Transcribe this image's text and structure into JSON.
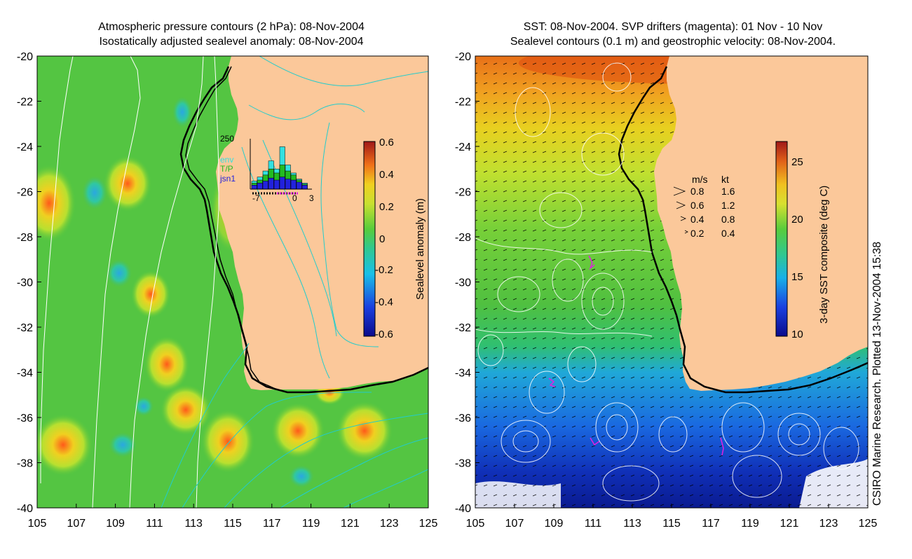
{
  "left": {
    "title_line1": "Atmospheric pressure contours (2 hPa): 08-Nov-2004",
    "title_line2": "Isostatically adjusted sealevel anomaly: 08-Nov-2004",
    "colorbar": {
      "label": "Sealevel anomaly (m)",
      "ticks": [
        "0.6",
        "0.4",
        "0.2",
        "0",
        "-0.2",
        "-0.4",
        "-0.6"
      ],
      "range": [
        -0.6,
        0.6
      ]
    },
    "inset": {
      "ymax_label": "250",
      "legend": [
        "env",
        "T/P",
        "jsn1"
      ],
      "xticks": [
        "-7",
        "0",
        "3"
      ],
      "colors": {
        "env": "#33e0e0",
        "tp": "#22bb22",
        "jsn1": "#2222dd"
      },
      "bars_env": [
        40,
        60,
        90,
        140,
        100,
        210,
        120,
        80,
        50,
        30
      ],
      "bars_tp": [
        30,
        45,
        70,
        100,
        80,
        120,
        90,
        70,
        45,
        25
      ],
      "bars_jsn1": [
        20,
        30,
        40,
        55,
        45,
        60,
        50,
        45,
        35,
        20
      ]
    }
  },
  "right": {
    "title_line1": "SST: 08-Nov-2004. SVP drifters (magenta): 01 Nov - 10 Nov",
    "title_line2": "Sealevel contours (0.1 m) and geostrophic velocity: 08-Nov-2004.",
    "colorbar": {
      "label": "3-day SST composite (deg C)",
      "ticks": [
        "25",
        "20",
        "15",
        "10"
      ],
      "range": [
        10,
        27
      ]
    },
    "velocity_key": {
      "header_ms": "m/s",
      "header_kt": "kt",
      "rows": [
        {
          "ms": "0.8",
          "kt": "1.6"
        },
        {
          "ms": "0.6",
          "kt": "1.2"
        },
        {
          "ms": "0.4",
          "kt": "0.8"
        },
        {
          "ms": "0.2",
          "kt": "0.4"
        }
      ]
    }
  },
  "axes": {
    "y_ticks": [
      "-20",
      "-22",
      "-24",
      "-26",
      "-28",
      "-30",
      "-32",
      "-34",
      "-36",
      "-38",
      "-40"
    ],
    "x_ticks": [
      "105",
      "107",
      "109",
      "111",
      "113",
      "115",
      "117",
      "119",
      "121",
      "123",
      "125"
    ]
  },
  "credit": "CSIRO Marine Research. Plotted 13-Nov-2004 15:38"
}
